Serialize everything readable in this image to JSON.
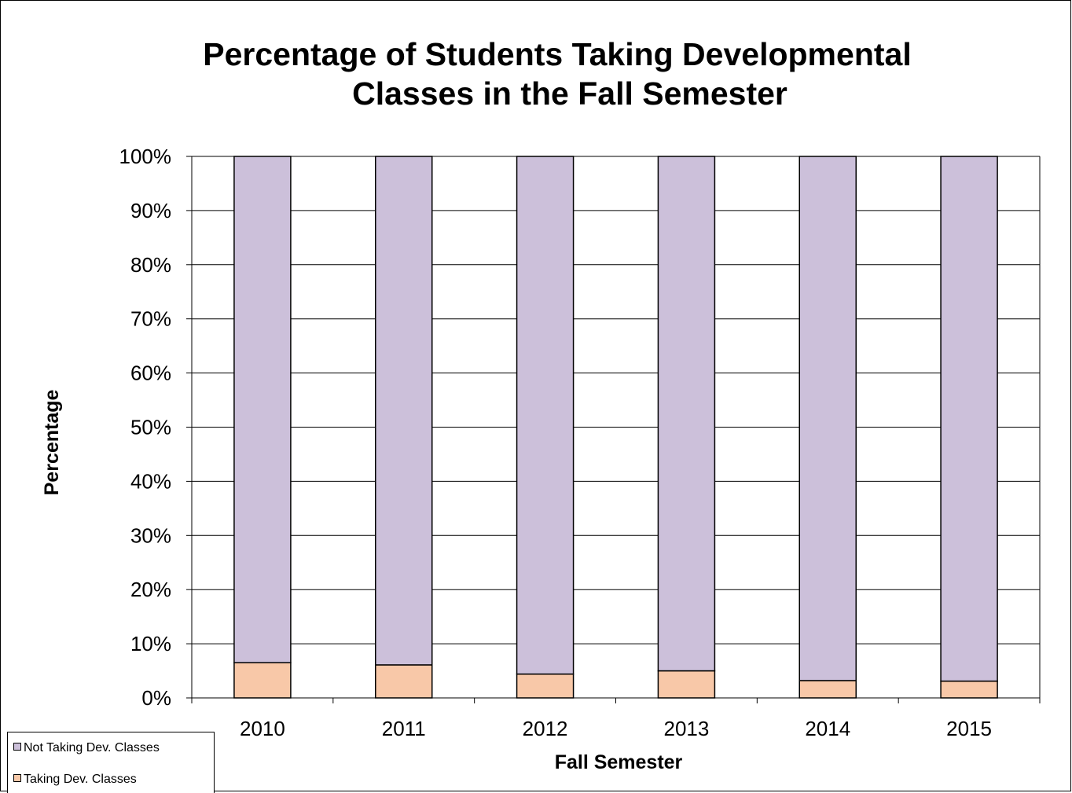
{
  "chart_data": {
    "type": "bar",
    "stacked": true,
    "title": "Percentage of Students Taking Developmental Classes in the Fall Semester",
    "title_lines": [
      "Percentage of Students Taking Developmental",
      "Classes in the Fall Semester"
    ],
    "xlabel": "Fall Semester",
    "ylabel": "Percentage",
    "categories": [
      "2010",
      "2011",
      "2012",
      "2013",
      "2014",
      "2015"
    ],
    "ylim": [
      0,
      100
    ],
    "yticks": [
      "0%",
      "10%",
      "20%",
      "30%",
      "40%",
      "50%",
      "60%",
      "70%",
      "80%",
      "90%",
      "100%"
    ],
    "grid": true,
    "legend_position": "bottom-left",
    "series": [
      {
        "name": "Taking Dev. Classes",
        "color": "#F8C8A8",
        "values": [
          6.5,
          6.1,
          4.4,
          5.0,
          3.2,
          3.1
        ]
      },
      {
        "name": "Not Taking Dev. Classes",
        "color": "#CCC0DA",
        "values": [
          93.5,
          93.9,
          95.6,
          95.0,
          96.8,
          96.9
        ]
      }
    ]
  }
}
